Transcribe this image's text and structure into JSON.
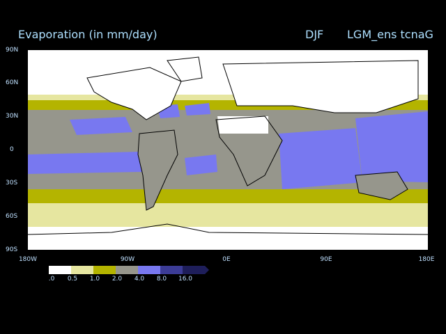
{
  "title": {
    "variable": "Evaporation (in mm/day)",
    "season": "DJF",
    "experiment": "LGM_ens tcnaG"
  },
  "axes": {
    "lat_labels": [
      "90N",
      "60N",
      "30N",
      "0",
      "30S",
      "60S",
      "90S"
    ],
    "lon_labels": [
      "180W",
      "90W",
      "0E",
      "90E",
      "180E"
    ]
  },
  "legend": {
    "labels": [
      ".0",
      "0.5",
      "1.0",
      "2.0",
      "4.0",
      "8.0",
      "16.0"
    ],
    "colors": [
      "#ffffff",
      "#e6e6a0",
      "#b4b400",
      "#96968c",
      "#7878f0",
      "#3c3c96",
      "#1e1e5a"
    ]
  },
  "chart_data": {
    "type": "heatmap",
    "title": "Evaporation (in mm/day)",
    "xlabel": "",
    "ylabel": "",
    "xlim": [
      -180,
      180
    ],
    "ylim": [
      -90,
      90
    ],
    "levels": [
      0.0,
      0.5,
      1.0,
      2.0,
      4.0,
      8.0,
      16.0
    ],
    "bands": [
      {
        "lat_from": 90,
        "lat_to": 50,
        "value_class": "0.0-0.5"
      },
      {
        "lat_from": 50,
        "lat_to": 40,
        "value_class": "0.5-2.0"
      },
      {
        "lat_from": 40,
        "lat_to": 20,
        "value_class": "2.0-4.0"
      },
      {
        "lat_from": 20,
        "lat_to": -20,
        "value_class": "4.0-8.0"
      },
      {
        "lat_from": -20,
        "lat_to": -40,
        "value_class": "2.0-4.0"
      },
      {
        "lat_from": -40,
        "lat_to": -50,
        "value_class": "1.0-2.0"
      },
      {
        "lat_from": -50,
        "lat_to": -70,
        "value_class": "0.5-1.0"
      },
      {
        "lat_from": -70,
        "lat_to": -90,
        "value_class": "0.0-0.5"
      }
    ]
  }
}
